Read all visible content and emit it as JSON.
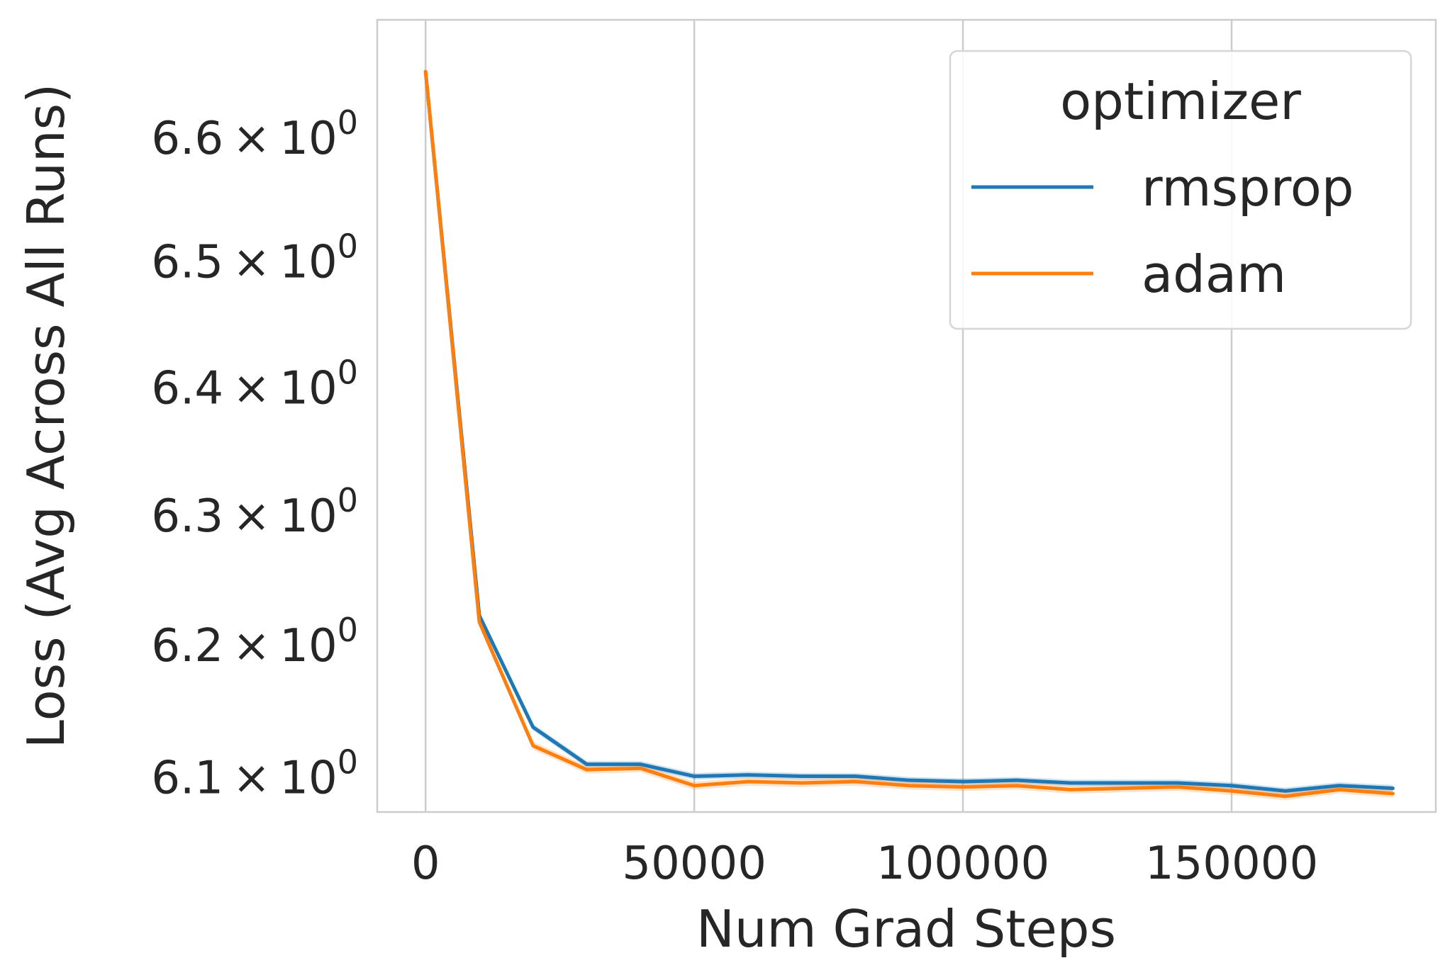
{
  "chart_data": {
    "type": "line",
    "xlabel": "Num Grad Steps",
    "ylabel": "Loss (Avg Across All Runs)",
    "y_scale": "log",
    "grid": "x-only",
    "xlim": [
      -9000,
      188000
    ],
    "ylim": [
      6.0732,
      6.6956
    ],
    "x_ticks": [
      0,
      50000,
      100000,
      150000
    ],
    "x_tick_labels": [
      "0",
      "50000",
      "100000",
      "150000"
    ],
    "y_ticks": [
      {
        "value": 6.1,
        "mantissa": "6.1",
        "base": "10",
        "exp": "0"
      },
      {
        "value": 6.2,
        "mantissa": "6.2",
        "base": "10",
        "exp": "0"
      },
      {
        "value": 6.3,
        "mantissa": "6.3",
        "base": "10",
        "exp": "0"
      },
      {
        "value": 6.4,
        "mantissa": "6.4",
        "base": "10",
        "exp": "0"
      },
      {
        "value": 6.5,
        "mantissa": "6.5",
        "base": "10",
        "exp": "0"
      },
      {
        "value": 6.6,
        "mantissa": "6.6",
        "base": "10",
        "exp": "0"
      }
    ],
    "legend": {
      "title": "optimizer",
      "placement": "top-right"
    },
    "x": [
      0,
      10000,
      20000,
      30000,
      40000,
      50000,
      60000,
      70000,
      80000,
      90000,
      100000,
      110000,
      120000,
      130000,
      140000,
      150000,
      160000,
      170000,
      180000
    ],
    "series": [
      {
        "name": "rmsprop",
        "color": "#1f77b4",
        "values": [
          6.653,
          6.222,
          6.137,
          6.109,
          6.109,
          6.1,
          6.101,
          6.1,
          6.1,
          6.097,
          6.096,
          6.097,
          6.095,
          6.095,
          6.095,
          6.093,
          6.089,
          6.093,
          6.091
        ],
        "band": 0.0025
      },
      {
        "name": "adam",
        "color": "#ff7f0e",
        "values": [
          6.653,
          6.217,
          6.123,
          6.105,
          6.106,
          6.093,
          6.096,
          6.095,
          6.096,
          6.093,
          6.092,
          6.093,
          6.09,
          6.091,
          6.092,
          6.089,
          6.085,
          6.09,
          6.087
        ],
        "band": 0.003
      }
    ]
  }
}
